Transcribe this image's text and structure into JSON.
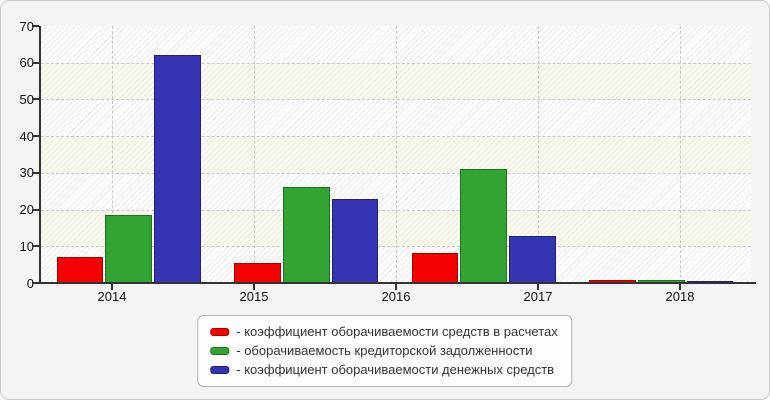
{
  "figure": {
    "background": "#f4f4f4",
    "border_color": "#c8c8c8"
  },
  "chart_data": {
    "type": "bar",
    "categories": [
      "2014",
      "2015",
      "2016",
      "2017",
      "2018"
    ],
    "series": [
      {
        "name": "коэффициент оборачиваемости средств в расчетах",
        "color": "#f40000",
        "border_color": "#aa0000",
        "values": [
          7.0,
          5.4,
          8.2,
          0.8
        ]
      },
      {
        "name": "оборачиваемость кредиторской задолженности",
        "color": "#33a433",
        "border_color": "#1f701f",
        "values": [
          18.4,
          26.2,
          31.0,
          0.8
        ]
      },
      {
        "name": "коэффициент оборачиваемости денежных средств",
        "color": "#3534b2",
        "border_color": "#202070",
        "values": [
          62.0,
          22.8,
          12.8,
          0.5
        ]
      }
    ],
    "ylim": [
      0,
      70
    ],
    "y_ticks": [
      0,
      10,
      20,
      30,
      40,
      50,
      60,
      70
    ],
    "grid": {
      "horizontal": "dashed",
      "vertical": "dashed",
      "color": "#c9c9c9"
    },
    "plot_background": {
      "hatch_band": "#ffffff",
      "plain_band": "#f8f8ee"
    },
    "axis_color": "#333333",
    "legend_position": "bottom-center",
    "bar_groups": 4,
    "layout_note": "4 bar clusters rendered across 5 year tick labels; clusters sit offset to the right of their ticks"
  },
  "legend": {
    "items": [
      {
        "label": "- коэффициент оборачиваемости средств в расчетах",
        "series_color": "#f40000"
      },
      {
        "label": "- оборачиваемость кредиторской задолженности",
        "series_color": "#33a433"
      },
      {
        "label": "- коэффициент оборачиваемости денежных средств",
        "series_color": "#3534b2"
      }
    ]
  }
}
